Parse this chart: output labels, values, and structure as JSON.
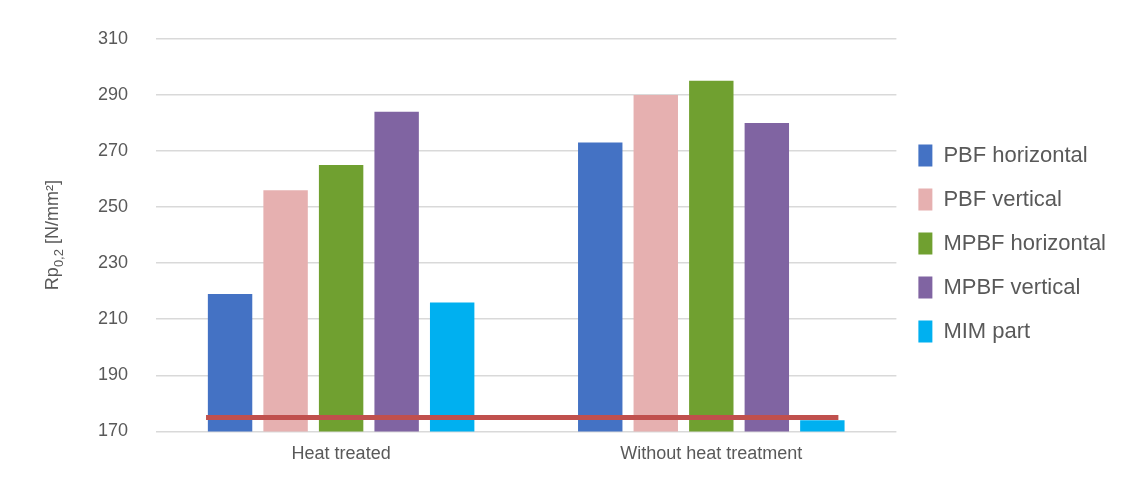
{
  "chart_data": {
    "type": "bar",
    "ylabel": "Rp$_{0,2}$ [N/mm²]",
    "categories": [
      "Heat treated",
      "Without heat treatment"
    ],
    "series": [
      {
        "name": "PBF horizontal",
        "color": "#4472c4",
        "values": [
          219,
          273
        ]
      },
      {
        "name": "PBF vertical",
        "color": "#e6b0b0",
        "values": [
          256,
          290
        ]
      },
      {
        "name": "MPBF horizontal",
        "color": "#70a030",
        "values": [
          265,
          295
        ]
      },
      {
        "name": "MPBF vertical",
        "color": "#8064a2",
        "values": [
          284,
          280
        ]
      },
      {
        "name": "MIM part",
        "color": "#00b0f0",
        "values": [
          216,
          174
        ]
      }
    ],
    "ylim": [
      170,
      310
    ],
    "yticks": [
      170,
      190,
      210,
      230,
      250,
      270,
      290,
      310
    ],
    "grid": "y",
    "legend": "right",
    "ref_lines": [
      {
        "axis": "y",
        "value": 175,
        "color": "#c0504d"
      }
    ]
  }
}
